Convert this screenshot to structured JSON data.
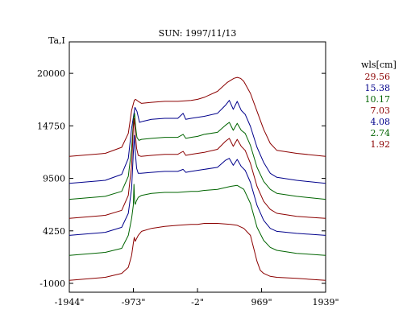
{
  "chart_data": {
    "type": "line",
    "title": "SUN: 1997/11/13",
    "xlabel": "",
    "ylabel": "Ta,I",
    "xlim": [
      -1944,
      1939
    ],
    "ylim": [
      -1000,
      21700
    ],
    "x_ticks": [
      {
        "value": -1944,
        "label": "-1944\""
      },
      {
        "value": -973,
        "label": "-973\""
      },
      {
        "value": -2,
        "label": "-2\""
      },
      {
        "value": 969,
        "label": "969\""
      },
      {
        "value": 1939,
        "label": "1939\""
      }
    ],
    "y_ticks": [
      {
        "value": 20000,
        "label": "20000"
      },
      {
        "value": 14750,
        "label": "14750"
      },
      {
        "value": 9500,
        "label": "9500"
      },
      {
        "value": 4250,
        "label": "4250"
      },
      {
        "value": -1000,
        "label": "-1000"
      }
    ],
    "grid": false,
    "legend": {
      "title": "wls[cm]",
      "placement": "right",
      "entries": [
        "29.56",
        "15.38",
        "10.17",
        "7.03",
        "4.08",
        "2.74",
        "1.92"
      ]
    },
    "series": [
      {
        "name": "29.56",
        "color": "#8b0000",
        "x": [
          -1944,
          -1400,
          -1150,
          -1050,
          -1000,
          -960,
          -940,
          -900,
          -850,
          -700,
          -500,
          -300,
          -100,
          0,
          100,
          300,
          450,
          550,
          600,
          650,
          700,
          800,
          900,
          1000,
          1100,
          1200,
          1500,
          1939
        ],
        "y": [
          11700,
          12000,
          12600,
          14000,
          16300,
          17300,
          17400,
          17200,
          17000,
          17100,
          17200,
          17200,
          17300,
          17400,
          17600,
          18200,
          19100,
          19500,
          19600,
          19500,
          19200,
          18000,
          16200,
          14400,
          13000,
          12300,
          12000,
          11700
        ]
      },
      {
        "name": "15.38",
        "color": "#00008b",
        "x": [
          -1944,
          -1400,
          -1150,
          -1050,
          -1000,
          -950,
          -920,
          -880,
          -830,
          -700,
          -500,
          -300,
          -220,
          -180,
          -100,
          0,
          100,
          300,
          420,
          480,
          540,
          600,
          660,
          720,
          800,
          900,
          1000,
          1100,
          1200,
          1500,
          1939
        ],
        "y": [
          9000,
          9300,
          9900,
          11500,
          14500,
          16600,
          16200,
          15100,
          15200,
          15400,
          15500,
          15500,
          16000,
          15400,
          15500,
          15600,
          15700,
          16000,
          16800,
          17300,
          16400,
          17200,
          16300,
          15900,
          14700,
          12600,
          11100,
          10000,
          9600,
          9300,
          9000
        ]
      },
      {
        "name": "10.17",
        "color": "#006400",
        "x": [
          -1944,
          -1400,
          -1150,
          -1050,
          -1000,
          -970,
          -955,
          -940,
          -920,
          -890,
          -850,
          -700,
          -500,
          -300,
          -220,
          -180,
          -100,
          0,
          100,
          300,
          420,
          480,
          540,
          600,
          660,
          720,
          800,
          900,
          1000,
          1100,
          1200,
          1500,
          1939
        ],
        "y": [
          7400,
          7700,
          8200,
          9700,
          12500,
          15500,
          16000,
          14700,
          13600,
          13300,
          13400,
          13500,
          13600,
          13600,
          13900,
          13500,
          13600,
          13700,
          13900,
          14100,
          14800,
          15100,
          14300,
          15000,
          14300,
          14000,
          12800,
          10600,
          9200,
          8400,
          8000,
          7700,
          7400
        ]
      },
      {
        "name": "7.03",
        "color": "#8b0000",
        "x": [
          -1944,
          -1400,
          -1150,
          -1050,
          -1000,
          -975,
          -960,
          -945,
          -925,
          -900,
          -860,
          -700,
          -500,
          -300,
          -220,
          -180,
          -100,
          0,
          100,
          300,
          420,
          480,
          540,
          600,
          660,
          720,
          800,
          900,
          1000,
          1100,
          1200,
          1500,
          1939
        ],
        "y": [
          5500,
          5800,
          6300,
          7800,
          10800,
          14500,
          15500,
          14000,
          12500,
          11800,
          11700,
          11800,
          11900,
          11900,
          12200,
          11800,
          11900,
          12000,
          12100,
          12400,
          13200,
          13500,
          12700,
          13400,
          12700,
          12300,
          11000,
          8700,
          7200,
          6400,
          6000,
          5700,
          5500
        ]
      },
      {
        "name": "4.08",
        "color": "#00008b",
        "x": [
          -1944,
          -1400,
          -1150,
          -1050,
          -1000,
          -975,
          -960,
          -945,
          -925,
          -900,
          -860,
          -700,
          -500,
          -300,
          -220,
          -180,
          -100,
          0,
          100,
          300,
          420,
          480,
          540,
          600,
          660,
          720,
          800,
          900,
          1000,
          1100,
          1200,
          1500,
          1939
        ],
        "y": [
          3800,
          4100,
          4600,
          6000,
          8500,
          12000,
          13800,
          12200,
          10500,
          10000,
          10000,
          10100,
          10200,
          10200,
          10400,
          10100,
          10200,
          10300,
          10400,
          10600,
          11300,
          11500,
          10800,
          11400,
          10700,
          10300,
          9100,
          6800,
          5300,
          4500,
          4200,
          4000,
          3800
        ]
      },
      {
        "name": "2.74",
        "color": "#006400",
        "x": [
          -1944,
          -1400,
          -1150,
          -1050,
          -1000,
          -975,
          -965,
          -955,
          -945,
          -930,
          -900,
          -850,
          -700,
          -500,
          -300,
          -100,
          0,
          100,
          300,
          500,
          600,
          700,
          800,
          900,
          1000,
          1100,
          1200,
          1500,
          1939
        ],
        "y": [
          1800,
          2100,
          2500,
          3800,
          5500,
          6800,
          8900,
          7100,
          6900,
          7200,
          7600,
          7800,
          8000,
          8100,
          8100,
          8200,
          8200,
          8300,
          8400,
          8700,
          8800,
          8400,
          7000,
          4600,
          3300,
          2600,
          2300,
          2000,
          1800
        ]
      },
      {
        "name": "1.92",
        "color": "#8b0000",
        "x": [
          -1944,
          -1400,
          -1150,
          -1050,
          -1000,
          -975,
          -960,
          -945,
          -930,
          -900,
          -850,
          -700,
          -500,
          -300,
          -100,
          0,
          100,
          300,
          500,
          600,
          700,
          800,
          850,
          900,
          950,
          1000,
          1100,
          1200,
          1500,
          1939
        ],
        "y": [
          -700,
          -400,
          0,
          600,
          1800,
          3000,
          3600,
          3200,
          3400,
          3800,
          4200,
          4500,
          4700,
          4800,
          4900,
          4900,
          5000,
          5000,
          4900,
          4800,
          4500,
          3800,
          2500,
          1200,
          300,
          0,
          -300,
          -400,
          -500,
          -700
        ]
      }
    ]
  }
}
